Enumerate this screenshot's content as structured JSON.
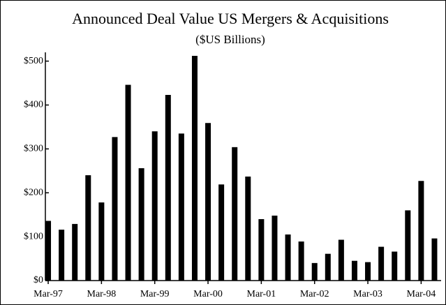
{
  "chart_data": {
    "type": "bar",
    "title": "Announced Deal Value US Mergers & Acquisitions",
    "subtitle": "($US Billions)",
    "categories": [
      "Mar-97",
      null,
      null,
      null,
      "Mar-98",
      null,
      null,
      null,
      "Mar-99",
      null,
      null,
      null,
      "Mar-00",
      null,
      null,
      null,
      "Mar-01",
      null,
      null,
      null,
      "Mar-02",
      null,
      null,
      null,
      "Mar-03",
      null,
      null,
      null,
      "Mar-04",
      null
    ],
    "values": [
      136,
      116,
      129,
      240,
      178,
      327,
      446,
      256,
      340,
      423,
      335,
      512,
      359,
      219,
      304,
      237,
      140,
      148,
      105,
      89,
      40,
      61,
      93,
      45,
      42,
      77,
      66,
      160,
      227,
      96
    ],
    "color": "#000000",
    "ylim": [
      0,
      520
    ],
    "yticks": [
      {
        "value": 0,
        "label": "$0"
      },
      {
        "value": 100,
        "label": "$100"
      },
      {
        "value": 200,
        "label": "$200"
      },
      {
        "value": 300,
        "label": "$300"
      },
      {
        "value": 400,
        "label": "$400"
      },
      {
        "value": 500,
        "label": "$500"
      }
    ],
    "grid": false
  }
}
